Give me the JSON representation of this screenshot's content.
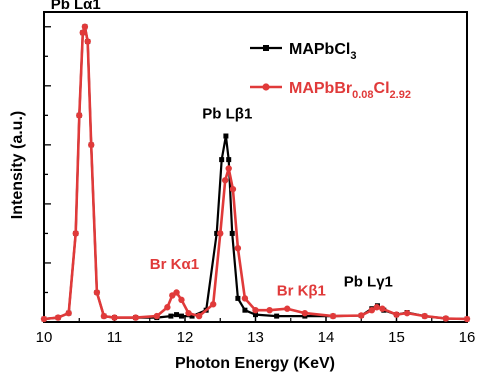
{
  "chart_data": {
    "type": "line",
    "title": "",
    "xlabel": "Photon Energy (KeV)",
    "ylabel": "Intensity (a.u.)",
    "xlim": [
      10,
      16
    ],
    "ylim": [
      0,
      1.05
    ],
    "x_ticks": [
      "10",
      "11",
      "12",
      "13",
      "14",
      "15",
      "16"
    ],
    "y_ticks_labeled": false,
    "grid": false,
    "legend_position": "top-right",
    "series": [
      {
        "name": "MAPbCl3",
        "legend_main": "MAPbCl",
        "legend_sub": "3",
        "color": "#000000",
        "marker": "square",
        "x": [
          10.0,
          10.2,
          10.35,
          10.45,
          10.5,
          10.55,
          10.58,
          10.62,
          10.67,
          10.75,
          10.85,
          11.0,
          11.3,
          11.6,
          11.8,
          11.88,
          11.95,
          12.1,
          12.3,
          12.45,
          12.52,
          12.58,
          12.62,
          12.67,
          12.75,
          12.85,
          13.0,
          13.3,
          13.7,
          14.1,
          14.5,
          14.65,
          14.73,
          14.82,
          15.0,
          15.15,
          15.4,
          15.7,
          16.0
        ],
        "y": [
          0.01,
          0.015,
          0.03,
          0.3,
          0.7,
          0.98,
          1.0,
          0.95,
          0.6,
          0.1,
          0.02,
          0.015,
          0.015,
          0.015,
          0.02,
          0.025,
          0.02,
          0.02,
          0.04,
          0.3,
          0.55,
          0.63,
          0.55,
          0.3,
          0.08,
          0.04,
          0.025,
          0.02,
          0.02,
          0.02,
          0.022,
          0.045,
          0.055,
          0.04,
          0.025,
          0.032,
          0.02,
          0.012,
          0.01
        ]
      },
      {
        "name": "MAPbBr0.08Cl2.92",
        "legend_main": "MAPbBr",
        "legend_sub1": "0.08",
        "legend_mid": "Cl",
        "legend_sub2": "2.92",
        "color": "#e03a3a",
        "marker": "circle",
        "x": [
          10.0,
          10.2,
          10.35,
          10.45,
          10.5,
          10.55,
          10.58,
          10.62,
          10.67,
          10.75,
          10.85,
          11.0,
          11.3,
          11.6,
          11.75,
          11.82,
          11.88,
          11.95,
          12.05,
          12.2,
          12.4,
          12.5,
          12.57,
          12.62,
          12.68,
          12.75,
          12.85,
          13.0,
          13.2,
          13.45,
          13.7,
          14.1,
          14.5,
          14.65,
          14.72,
          14.8,
          15.0,
          15.15,
          15.4,
          15.7,
          16.0
        ],
        "y": [
          0.01,
          0.015,
          0.03,
          0.3,
          0.7,
          0.98,
          1.0,
          0.95,
          0.6,
          0.1,
          0.02,
          0.015,
          0.015,
          0.02,
          0.05,
          0.09,
          0.1,
          0.075,
          0.03,
          0.02,
          0.06,
          0.3,
          0.48,
          0.52,
          0.45,
          0.25,
          0.08,
          0.04,
          0.04,
          0.045,
          0.03,
          0.02,
          0.022,
          0.04,
          0.05,
          0.045,
          0.025,
          0.03,
          0.02,
          0.012,
          0.01
        ]
      }
    ],
    "annotations": [
      {
        "id": "pb-la1",
        "text": "Pb Lα1",
        "color": "#000000",
        "x": 10.45,
        "y": 1.06
      },
      {
        "id": "pb-lb1",
        "text": "Pb Lβ1",
        "color": "#000000",
        "x": 12.6,
        "y": 0.69
      },
      {
        "id": "br-ka1",
        "text": "Br Kα1",
        "color": "#e03a3a",
        "x": 11.85,
        "y": 0.18
      },
      {
        "id": "br-kb1",
        "text": "Br Kβ1",
        "color": "#e03a3a",
        "x": 13.65,
        "y": 0.09
      },
      {
        "id": "pb-lg1",
        "text": "Pb Lγ1",
        "color": "#000000",
        "x": 14.6,
        "y": 0.12
      }
    ]
  }
}
